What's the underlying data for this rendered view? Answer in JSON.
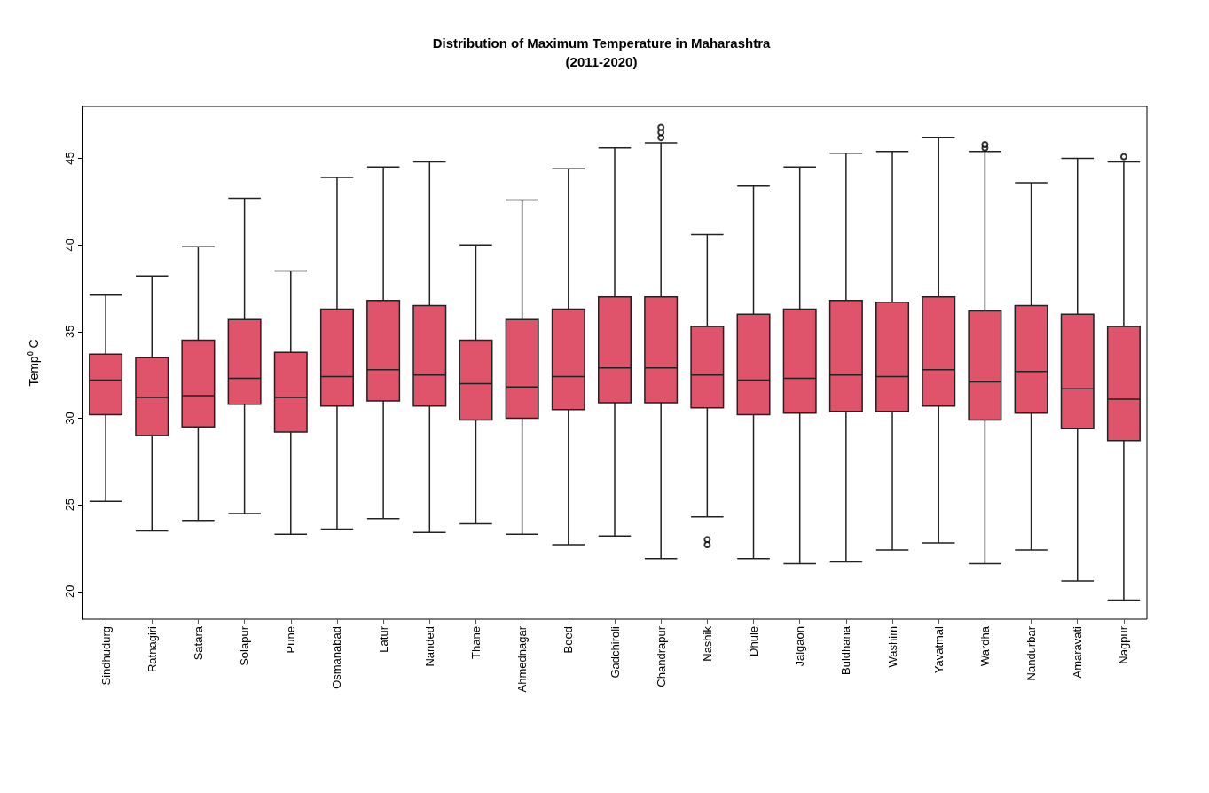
{
  "chart_data": {
    "type": "box",
    "title": "Distribution of Maximum Temperature in Maharashtra",
    "subtitle": "(2011-2020)",
    "ylabel": "Temp⁰ C",
    "categories": [
      "Sindhudurg",
      "Ratnagiri",
      "Satara",
      "Solapur",
      "Pune",
      "Osmanabad",
      "Latur",
      "Nanded",
      "Thane",
      "Ahmednagar",
      "Beed",
      "Gadchiroli",
      "Chandrapur",
      "Nashik",
      "Dhule",
      "Jalgaon",
      "Buldhana",
      "Washim",
      "Yavatmal",
      "Wardha",
      "Nandurbar",
      "Amaravati",
      "Nagpur"
    ],
    "color": "#df536b",
    "ylim": [
      18.4,
      48
    ],
    "yticks": [
      20,
      25,
      30,
      35,
      40,
      45
    ],
    "grid": false,
    "boxes": [
      {
        "low": 25.2,
        "q1": 30.2,
        "median": 32.2,
        "q3": 33.7,
        "high": 37.1
      },
      {
        "low": 23.5,
        "q1": 29.0,
        "median": 31.2,
        "q3": 33.5,
        "high": 38.2
      },
      {
        "low": 24.1,
        "q1": 29.5,
        "median": 31.3,
        "q3": 34.5,
        "high": 39.9
      },
      {
        "low": 24.5,
        "q1": 30.8,
        "median": 32.3,
        "q3": 35.7,
        "high": 42.7
      },
      {
        "low": 23.3,
        "q1": 29.2,
        "median": 31.2,
        "q3": 33.8,
        "high": 38.5
      },
      {
        "low": 23.6,
        "q1": 30.7,
        "median": 32.4,
        "q3": 36.3,
        "high": 43.9
      },
      {
        "low": 24.2,
        "q1": 31.0,
        "median": 32.8,
        "q3": 36.8,
        "high": 44.5
      },
      {
        "low": 23.4,
        "q1": 30.7,
        "median": 32.5,
        "q3": 36.5,
        "high": 44.8
      },
      {
        "low": 23.9,
        "q1": 29.9,
        "median": 32.0,
        "q3": 34.5,
        "high": 40.0
      },
      {
        "low": 23.3,
        "q1": 30.0,
        "median": 31.8,
        "q3": 35.7,
        "high": 42.6
      },
      {
        "low": 22.7,
        "q1": 30.5,
        "median": 32.4,
        "q3": 36.3,
        "high": 44.4
      },
      {
        "low": 23.2,
        "q1": 30.9,
        "median": 32.9,
        "q3": 37.0,
        "high": 45.6
      },
      {
        "low": 21.9,
        "q1": 30.9,
        "median": 32.9,
        "q3": 37.0,
        "high": 45.9,
        "outliers": [
          46.2,
          46.5,
          46.8
        ]
      },
      {
        "low": 24.3,
        "q1": 30.6,
        "median": 32.5,
        "q3": 35.3,
        "high": 40.6,
        "outliers": [
          23.0,
          22.7
        ]
      },
      {
        "low": 21.9,
        "q1": 30.2,
        "median": 32.2,
        "q3": 36.0,
        "high": 43.4
      },
      {
        "low": 21.6,
        "q1": 30.3,
        "median": 32.3,
        "q3": 36.3,
        "high": 44.5
      },
      {
        "low": 21.7,
        "q1": 30.4,
        "median": 32.5,
        "q3": 36.8,
        "high": 45.3
      },
      {
        "low": 22.4,
        "q1": 30.4,
        "median": 32.4,
        "q3": 36.7,
        "high": 45.4
      },
      {
        "low": 22.8,
        "q1": 30.7,
        "median": 32.8,
        "q3": 37.0,
        "high": 46.2
      },
      {
        "low": 21.6,
        "q1": 29.9,
        "median": 32.1,
        "q3": 36.2,
        "high": 45.4,
        "outliers": [
          45.6,
          45.8
        ]
      },
      {
        "low": 22.4,
        "q1": 30.3,
        "median": 32.7,
        "q3": 36.5,
        "high": 43.6
      },
      {
        "low": 20.6,
        "q1": 29.4,
        "median": 31.7,
        "q3": 36.0,
        "high": 45.0
      },
      {
        "low": 19.5,
        "q1": 28.7,
        "median": 31.1,
        "q3": 35.3,
        "high": 44.8,
        "outliers": [
          45.1
        ]
      }
    ]
  }
}
